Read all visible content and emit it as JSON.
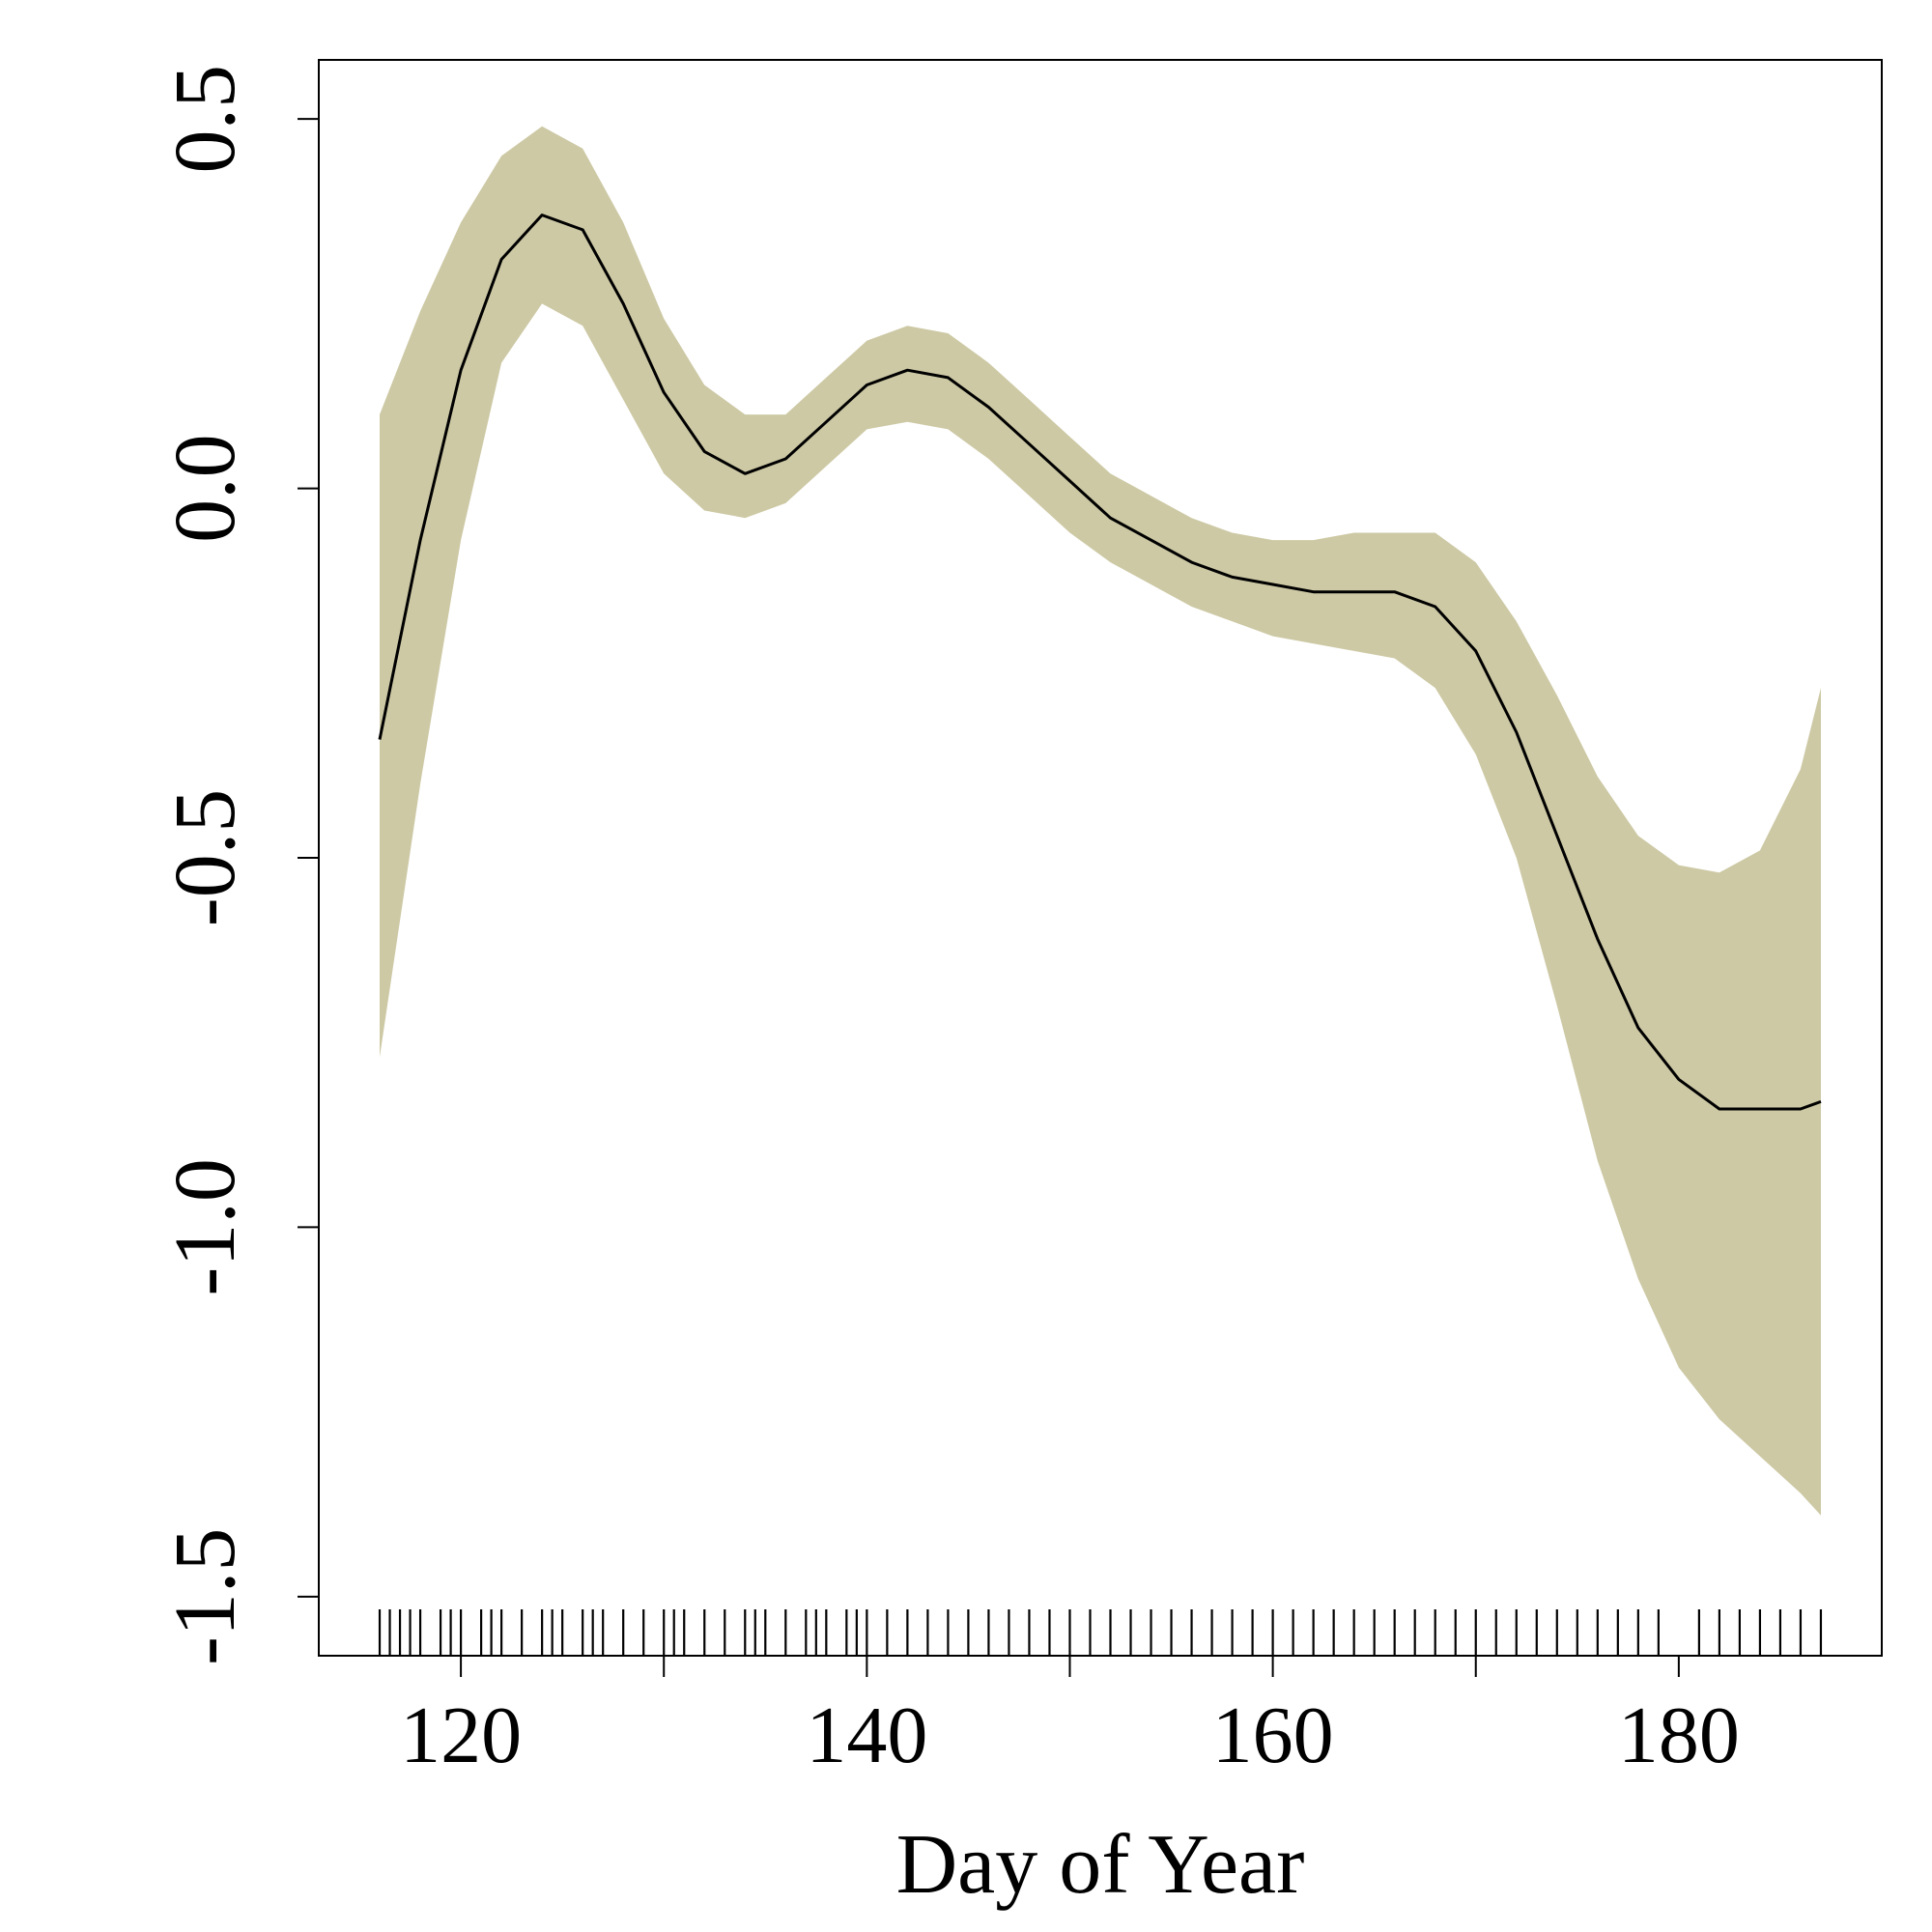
{
  "chart_data": {
    "type": "line",
    "title": "",
    "xlabel": "Day of Year",
    "ylabel": "",
    "xlim": [
      113,
      190
    ],
    "ylim": [
      -1.58,
      0.58
    ],
    "x_ticks": [
      120,
      130,
      140,
      150,
      160,
      170,
      180
    ],
    "x_tick_labels": [
      "120",
      "",
      "140",
      "",
      "160",
      "",
      "180"
    ],
    "y_ticks": [
      0.5,
      0,
      -0.5,
      -1,
      -1.5
    ],
    "y_tick_labels": [
      "0.5",
      "0.0",
      "-0.5",
      "-1.0",
      "-1.5"
    ],
    "grid": false,
    "legend": "none",
    "colors": {
      "band": "#cdc9a5",
      "line": "#000000",
      "axis": "#000000"
    },
    "series": [
      {
        "x": [
          116,
          118,
          120,
          122,
          124,
          126,
          128,
          130,
          132,
          134,
          136,
          138,
          140,
          142,
          144,
          146,
          148,
          150,
          152,
          154,
          156,
          158,
          160,
          162,
          164,
          166,
          168,
          170,
          172,
          174,
          176,
          178,
          180,
          182,
          184,
          186,
          187
        ],
        "estimate": [
          -0.34,
          -0.07,
          0.16,
          0.31,
          0.37,
          0.35,
          0.25,
          0.13,
          0.05,
          0.02,
          0.04,
          0.09,
          0.14,
          0.16,
          0.15,
          0.11,
          0.06,
          0.01,
          -0.04,
          -0.07,
          -0.1,
          -0.12,
          -0.13,
          -0.14,
          -0.14,
          -0.14,
          -0.16,
          -0.22,
          -0.33,
          -0.47,
          -0.61,
          -0.73,
          -0.8,
          -0.84,
          -0.84,
          -0.84,
          -0.83
        ],
        "lower": [
          -0.77,
          -0.4,
          -0.07,
          0.17,
          0.25,
          0.22,
          0.12,
          0.02,
          -0.03,
          -0.04,
          -0.02,
          0.03,
          0.08,
          0.09,
          0.08,
          0.04,
          -0.01,
          -0.06,
          -0.1,
          -0.13,
          -0.16,
          -0.18,
          -0.2,
          -0.21,
          -0.22,
          -0.23,
          -0.27,
          -0.36,
          -0.5,
          -0.7,
          -0.91,
          -1.07,
          -1.19,
          -1.26,
          -1.31,
          -1.36,
          -1.39
        ],
        "upper": [
          0.1,
          0.24,
          0.36,
          0.45,
          0.49,
          0.46,
          0.36,
          0.23,
          0.14,
          0.1,
          0.1,
          0.15,
          0.2,
          0.22,
          0.21,
          0.17,
          0.12,
          0.07,
          0.02,
          -0.01,
          -0.04,
          -0.06,
          -0.07,
          -0.07,
          -0.06,
          -0.06,
          -0.06,
          -0.1,
          -0.18,
          -0.28,
          -0.39,
          -0.47,
          -0.51,
          -0.52,
          -0.49,
          -0.38,
          -0.27
        ]
      }
    ],
    "rug": [
      116,
      116.5,
      117,
      117.5,
      118,
      119,
      119.5,
      120,
      121,
      121.5,
      122,
      123,
      124,
      124.5,
      125,
      126,
      126.5,
      127,
      128,
      129,
      130,
      130.5,
      131,
      132,
      133,
      134,
      134.5,
      135,
      136,
      137,
      137.5,
      138,
      139,
      139.5,
      140,
      141,
      142,
      143,
      144,
      145,
      146,
      147,
      148,
      149,
      150,
      151,
      152,
      153,
      154,
      155,
      156,
      157,
      158,
      159,
      160,
      161,
      162,
      163,
      164,
      165,
      166,
      167,
      168,
      169,
      170,
      171,
      172,
      173,
      174,
      175,
      176,
      177,
      178,
      179,
      181,
      182,
      183,
      184,
      185,
      186,
      187
    ]
  }
}
